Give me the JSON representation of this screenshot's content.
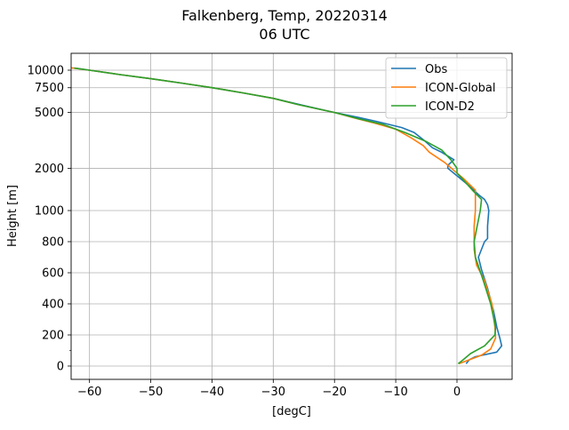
{
  "figure": {
    "title_line1": "Falkenberg, Temp, 20220314",
    "title_line2": "06 UTC"
  },
  "chart_data": {
    "type": "line",
    "xlabel": "[degC]",
    "ylabel": "Height [m]",
    "xlim": [
      -63,
      9
    ],
    "x_ticks": [
      -60,
      -50,
      -40,
      -30,
      -20,
      -10,
      0
    ],
    "y_scale": "piecewise: linear 0-1000, logarithmic 1000-10000",
    "y_ticks": [
      0,
      200,
      400,
      600,
      800,
      1000,
      2000,
      5000,
      7500,
      10000
    ],
    "y_tick_labels": [
      "0",
      "200",
      "400",
      "600",
      "800",
      "1000",
      "2000",
      "5000",
      "7500",
      "10000"
    ],
    "grid": true,
    "legend_position": "top-right",
    "series": [
      {
        "name": "Obs",
        "color": "#1f77b4",
        "points": [
          [
            1.5,
            15
          ],
          [
            2.0,
            40
          ],
          [
            3.0,
            60
          ],
          [
            6.5,
            90
          ],
          [
            7.3,
            130
          ],
          [
            7.0,
            180
          ],
          [
            6.5,
            250
          ],
          [
            6.0,
            350
          ],
          [
            5.0,
            500
          ],
          [
            4.0,
            620
          ],
          [
            3.5,
            700
          ],
          [
            4.5,
            800
          ],
          [
            5.0,
            820
          ],
          [
            5.0,
            900
          ],
          [
            5.2,
            1000
          ],
          [
            5.0,
            1100
          ],
          [
            4.5,
            1200
          ],
          [
            3.5,
            1300
          ],
          [
            2.0,
            1500
          ],
          [
            0.5,
            1700
          ],
          [
            -1.5,
            2000
          ],
          [
            -1.5,
            2100
          ],
          [
            -0.5,
            2300
          ],
          [
            -2.5,
            2600
          ],
          [
            -4.0,
            2800
          ],
          [
            -5.5,
            3200
          ],
          [
            -7.0,
            3600
          ],
          [
            -9.0,
            3900
          ],
          [
            -13.0,
            4300
          ],
          [
            -16.0,
            4600
          ],
          [
            -20.0,
            5000
          ],
          [
            -25.0,
            5600
          ],
          [
            -30.0,
            6300
          ],
          [
            -35.0,
            6900
          ],
          [
            -40.0,
            7500
          ],
          [
            -45.0,
            8100
          ],
          [
            -50.0,
            8700
          ],
          [
            -55.0,
            9300
          ],
          [
            -60.0,
            10000
          ],
          [
            -62.0,
            10300
          ]
        ]
      },
      {
        "name": "ICON-Global",
        "color": "#ff7f0e",
        "points": [
          [
            0.3,
            15
          ],
          [
            2.0,
            40
          ],
          [
            4.0,
            70
          ],
          [
            5.5,
            110
          ],
          [
            6.3,
            180
          ],
          [
            6.2,
            250
          ],
          [
            5.7,
            400
          ],
          [
            4.5,
            550
          ],
          [
            3.2,
            650
          ],
          [
            2.8,
            750
          ],
          [
            2.8,
            900
          ],
          [
            3.0,
            1000
          ],
          [
            3.0,
            1200
          ],
          [
            3.0,
            1400
          ],
          [
            1.0,
            1700
          ],
          [
            0.0,
            1850
          ],
          [
            -2.0,
            2200
          ],
          [
            -4.5,
            2600
          ],
          [
            -5.5,
            2900
          ],
          [
            -7.5,
            3300
          ],
          [
            -10.0,
            3800
          ],
          [
            -13.5,
            4200
          ],
          [
            -17.0,
            4600
          ],
          [
            -20.0,
            5000
          ],
          [
            -26.0,
            5700
          ],
          [
            -30.0,
            6300
          ],
          [
            -35.0,
            6900
          ],
          [
            -40.0,
            7500
          ],
          [
            -45.0,
            8100
          ],
          [
            -50.0,
            8700
          ],
          [
            -55.0,
            9300
          ],
          [
            -60.0,
            10000
          ],
          [
            -63.0,
            10400
          ]
        ]
      },
      {
        "name": "ICON-D2",
        "color": "#2ca02c",
        "points": [
          [
            0.2,
            15
          ],
          [
            1.0,
            40
          ],
          [
            2.2,
            80
          ],
          [
            4.5,
            130
          ],
          [
            6.2,
            200
          ],
          [
            6.3,
            250
          ],
          [
            5.5,
            400
          ],
          [
            4.3,
            550
          ],
          [
            3.0,
            700
          ],
          [
            2.8,
            800
          ],
          [
            3.3,
            900
          ],
          [
            3.8,
            1000
          ],
          [
            4.0,
            1200
          ],
          [
            2.5,
            1400
          ],
          [
            0.8,
            1700
          ],
          [
            0.0,
            1850
          ],
          [
            0.0,
            2000
          ],
          [
            -1.0,
            2300
          ],
          [
            -2.5,
            2700
          ],
          [
            -5.0,
            3100
          ],
          [
            -8.5,
            3600
          ],
          [
            -12.0,
            4100
          ],
          [
            -16.0,
            4500
          ],
          [
            -20.0,
            5000
          ],
          [
            -26.0,
            5700
          ],
          [
            -30.0,
            6300
          ],
          [
            -35.0,
            6900
          ],
          [
            -40.0,
            7500
          ],
          [
            -45.0,
            8100
          ],
          [
            -50.0,
            8700
          ],
          [
            -55.0,
            9300
          ],
          [
            -60.0,
            10000
          ],
          [
            -62.5,
            10350
          ]
        ]
      }
    ]
  }
}
